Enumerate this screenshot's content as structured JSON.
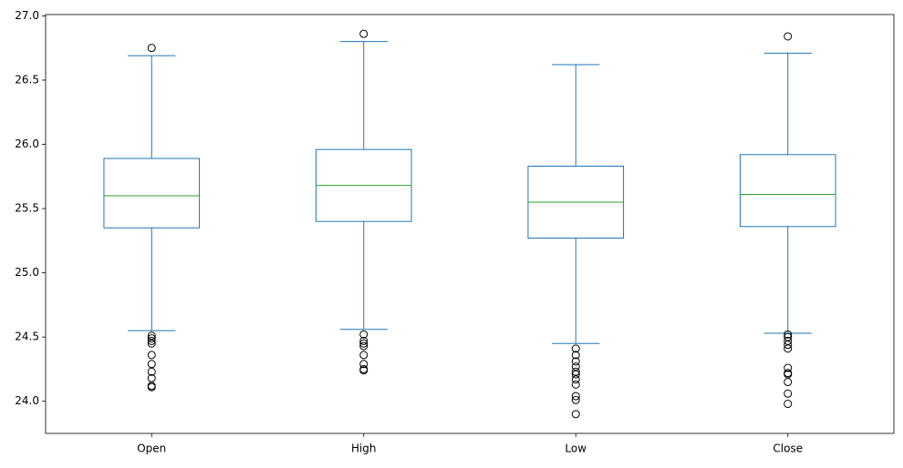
{
  "chart_data": {
    "type": "box",
    "categories": [
      "Open",
      "High",
      "Low",
      "Close"
    ],
    "box_color": "#1f77b4",
    "median_color": "#2ca02c",
    "flier_color": "#000000",
    "boxes": [
      {
        "whislo": 24.55,
        "q1": 25.35,
        "med": 25.6,
        "q3": 25.89,
        "whishi": 26.69,
        "fliers": [
          26.75,
          24.51,
          24.49,
          24.47,
          24.45,
          24.36,
          24.29,
          24.23,
          24.18,
          24.12,
          24.11
        ]
      },
      {
        "whislo": 24.56,
        "q1": 25.4,
        "med": 25.68,
        "q3": 25.96,
        "whishi": 26.8,
        "fliers": [
          26.86,
          24.52,
          24.47,
          24.45,
          24.43,
          24.36,
          24.29,
          24.25,
          24.24
        ]
      },
      {
        "whislo": 24.45,
        "q1": 25.27,
        "med": 25.55,
        "q3": 25.83,
        "whishi": 26.62,
        "fliers": [
          24.41,
          24.36,
          24.31,
          24.27,
          24.23,
          24.21,
          24.17,
          24.13,
          24.04,
          24.01,
          23.9
        ]
      },
      {
        "whislo": 24.53,
        "q1": 25.36,
        "med": 25.61,
        "q3": 25.92,
        "whishi": 26.71,
        "fliers": [
          26.84,
          24.52,
          24.5,
          24.47,
          24.44,
          24.41,
          24.26,
          24.22,
          24.21,
          24.15,
          24.06,
          23.98
        ]
      }
    ],
    "ylim": [
      23.75,
      27.01
    ],
    "yticks": [
      {
        "value": 24,
        "label": "24.0"
      },
      {
        "value": 24.5,
        "label": "24.5"
      },
      {
        "value": 25,
        "label": "25.0"
      },
      {
        "value": 25.5,
        "label": "25.5"
      },
      {
        "value": 26,
        "label": "26.0"
      },
      {
        "value": 26.5,
        "label": "26.5"
      },
      {
        "value": 27,
        "label": "27.0"
      }
    ],
    "grid": false
  }
}
